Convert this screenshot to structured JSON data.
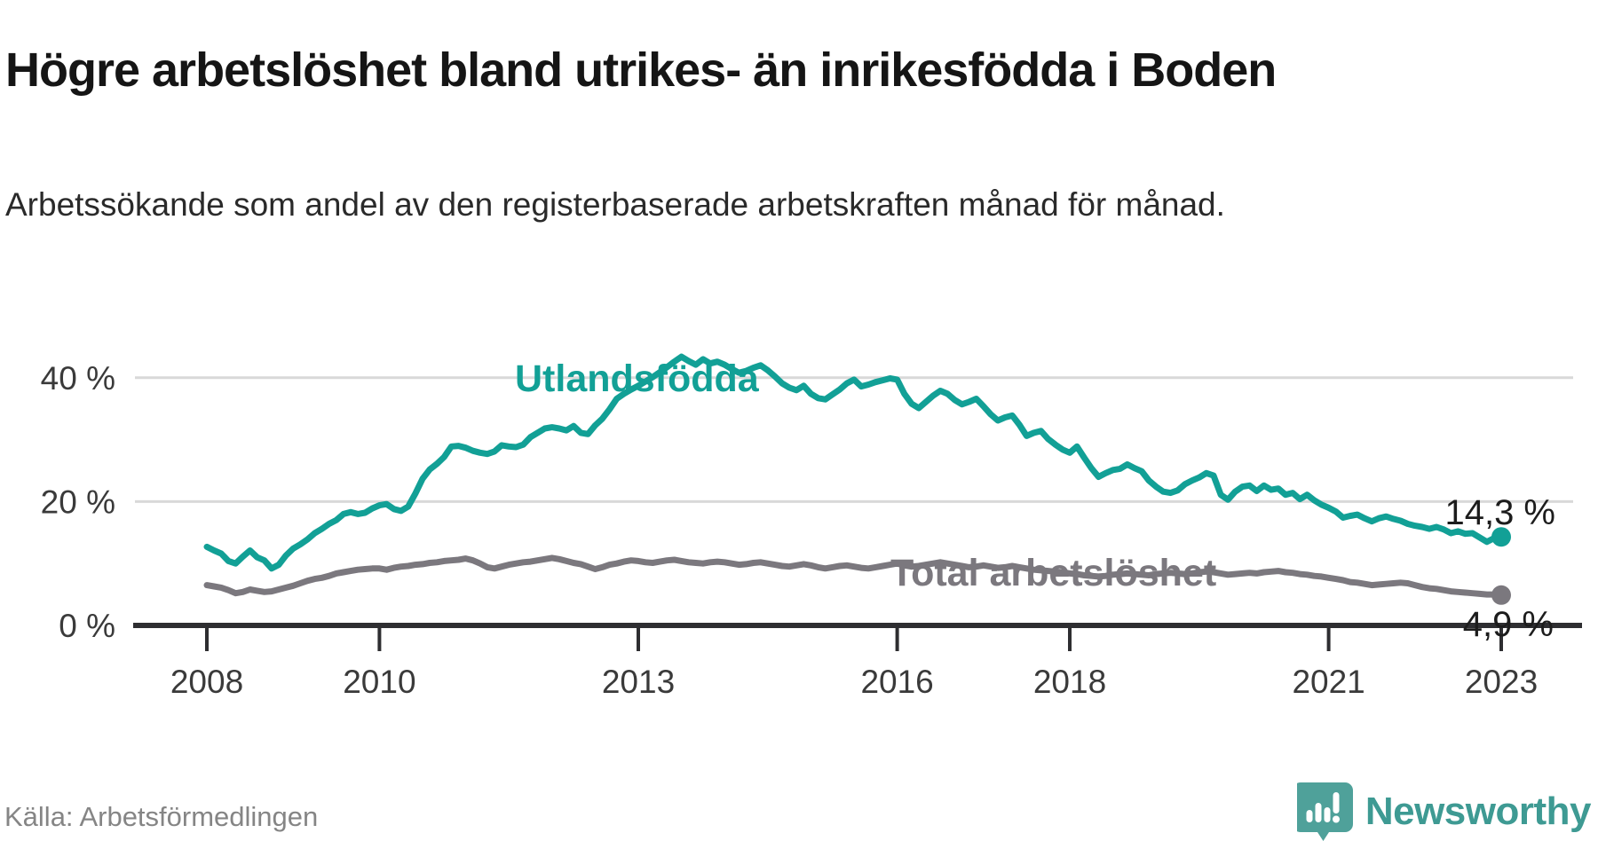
{
  "title": "Högre arbetslöshet bland utrikes- än inrikesfödda i Boden",
  "subtitle": "Arbetssökande som andel av den registerbaserade arbetskraften månad för månad.",
  "source": "Källa: Arbetsförmedlingen",
  "branding": {
    "name": "Newsworthy",
    "logo_icon": "newsworthy-chart-bubble-icon"
  },
  "colors": {
    "accent_teal": "#12A096",
    "line_gray": "#7B787E",
    "axis": "#2E2E31",
    "gridline": "#D9D9D9",
    "tick_text": "#3A3A3A",
    "logo_teal": "#4FA19A",
    "wordmark_teal": "#3E9A93"
  },
  "chart_data": {
    "type": "line",
    "x_start_year": 2008,
    "x_step_months": 1,
    "x_end_point": "2023-01",
    "ylim": [
      0,
      45
    ],
    "grid": "horizontal-only",
    "legend_position": "inline-labels",
    "y_axis": {
      "gridline_values": [
        20,
        40
      ],
      "ticks": [
        {
          "value": 0,
          "label": "0 %"
        },
        {
          "value": 20,
          "label": "20 %"
        },
        {
          "value": 40,
          "label": "40 %"
        }
      ]
    },
    "x_axis": {
      "ticks": [
        {
          "year": 2008,
          "label": "2008"
        },
        {
          "year": 2010,
          "label": "2010"
        },
        {
          "year": 2013,
          "label": "2013"
        },
        {
          "year": 2016,
          "label": "2016"
        },
        {
          "year": 2018,
          "label": "2018"
        },
        {
          "year": 2021,
          "label": "2021"
        },
        {
          "year": 2023,
          "label": "2023"
        }
      ]
    },
    "series": [
      {
        "name": "Utlandsfödda",
        "color": "#12A096",
        "end_label": "14,3 %",
        "end_value": 14.3,
        "values": [
          12.7,
          12.1,
          11.6,
          10.4,
          10.0,
          11.1,
          12.1,
          11.0,
          10.5,
          9.2,
          9.8,
          11.3,
          12.4,
          13.1,
          13.9,
          14.9,
          15.6,
          16.4,
          17.0,
          18.0,
          18.3,
          18.0,
          18.2,
          18.9,
          19.4,
          19.6,
          18.8,
          18.5,
          19.2,
          21.3,
          23.7,
          25.2,
          26.1,
          27.2,
          28.9,
          29.0,
          28.7,
          28.2,
          27.9,
          27.7,
          28.1,
          29.1,
          28.9,
          28.8,
          29.2,
          30.4,
          31.1,
          31.8,
          32.0,
          31.8,
          31.5,
          32.2,
          31.1,
          30.9,
          32.3,
          33.4,
          34.9,
          36.6,
          37.4,
          38.1,
          38.7,
          39.4,
          40.1,
          40.9,
          41.7,
          42.6,
          43.4,
          42.7,
          42.1,
          43.0,
          42.3,
          42.6,
          42.1,
          41.4,
          40.8,
          41.1,
          41.6,
          42.0,
          41.2,
          40.2,
          39.1,
          38.4,
          38.0,
          38.7,
          37.4,
          36.7,
          36.5,
          37.3,
          38.1,
          39.1,
          39.7,
          38.6,
          38.9,
          39.3,
          39.6,
          39.9,
          39.7,
          37.4,
          35.8,
          35.1,
          36.1,
          37.1,
          37.9,
          37.4,
          36.4,
          35.7,
          36.1,
          36.6,
          35.4,
          34.1,
          33.1,
          33.6,
          33.9,
          32.4,
          30.6,
          31.1,
          31.4,
          30.1,
          29.2,
          28.4,
          27.9,
          28.9,
          27.1,
          25.4,
          24.0,
          24.6,
          25.1,
          25.3,
          26.0,
          25.4,
          24.9,
          23.4,
          22.4,
          21.6,
          21.4,
          21.8,
          22.8,
          23.4,
          23.9,
          24.6,
          24.2,
          21.1,
          20.3,
          21.6,
          22.4,
          22.6,
          21.7,
          22.6,
          21.9,
          22.1,
          21.1,
          21.4,
          20.4,
          21.1,
          20.2,
          19.5,
          19.0,
          18.4,
          17.4,
          17.7,
          17.9,
          17.3,
          16.8,
          17.3,
          17.6,
          17.2,
          16.9,
          16.4,
          16.1,
          15.9,
          15.6,
          15.9,
          15.5,
          14.9,
          15.2,
          14.8,
          14.9,
          14.2,
          13.5,
          14.1,
          14.3
        ]
      },
      {
        "name": "Total arbetslöshet",
        "color": "#7B787E",
        "end_label": "4,9 %",
        "end_value": 4.9,
        "values": [
          6.5,
          6.3,
          6.1,
          5.7,
          5.2,
          5.4,
          5.8,
          5.6,
          5.4,
          5.5,
          5.8,
          6.1,
          6.4,
          6.8,
          7.2,
          7.5,
          7.7,
          8.0,
          8.4,
          8.6,
          8.8,
          9.0,
          9.1,
          9.2,
          9.2,
          9.0,
          9.3,
          9.5,
          9.6,
          9.8,
          9.9,
          10.1,
          10.2,
          10.4,
          10.5,
          10.6,
          10.8,
          10.5,
          10.0,
          9.4,
          9.2,
          9.5,
          9.8,
          10.0,
          10.2,
          10.3,
          10.5,
          10.7,
          10.9,
          10.7,
          10.4,
          10.1,
          9.9,
          9.5,
          9.1,
          9.4,
          9.8,
          10.0,
          10.3,
          10.5,
          10.4,
          10.2,
          10.1,
          10.3,
          10.5,
          10.6,
          10.4,
          10.2,
          10.1,
          10.0,
          10.2,
          10.3,
          10.2,
          10.0,
          9.8,
          9.9,
          10.1,
          10.2,
          10.0,
          9.8,
          9.6,
          9.5,
          9.7,
          9.9,
          9.7,
          9.4,
          9.2,
          9.4,
          9.6,
          9.7,
          9.5,
          9.3,
          9.2,
          9.4,
          9.6,
          9.8,
          10.0,
          9.7,
          9.5,
          9.6,
          9.8,
          10.0,
          10.2,
          10.0,
          9.8,
          9.6,
          9.4,
          9.5,
          9.7,
          9.5,
          9.3,
          9.4,
          9.6,
          9.4,
          9.2,
          9.0,
          8.9,
          8.8,
          8.7,
          8.6,
          8.4,
          8.3,
          8.1,
          8.0,
          7.9,
          8.0,
          8.2,
          8.3,
          8.4,
          8.3,
          8.2,
          8.1,
          8.3,
          8.4,
          8.5,
          8.4,
          8.3,
          8.4,
          8.6,
          8.7,
          8.6,
          8.4,
          8.2,
          8.3,
          8.4,
          8.5,
          8.4,
          8.6,
          8.7,
          8.8,
          8.6,
          8.5,
          8.3,
          8.2,
          8.0,
          7.9,
          7.7,
          7.5,
          7.3,
          7.0,
          6.9,
          6.7,
          6.5,
          6.6,
          6.7,
          6.8,
          6.9,
          6.8,
          6.5,
          6.2,
          6.0,
          5.9,
          5.7,
          5.5,
          5.4,
          5.3,
          5.2,
          5.1,
          5.0,
          5.0,
          4.9
        ]
      }
    ]
  }
}
